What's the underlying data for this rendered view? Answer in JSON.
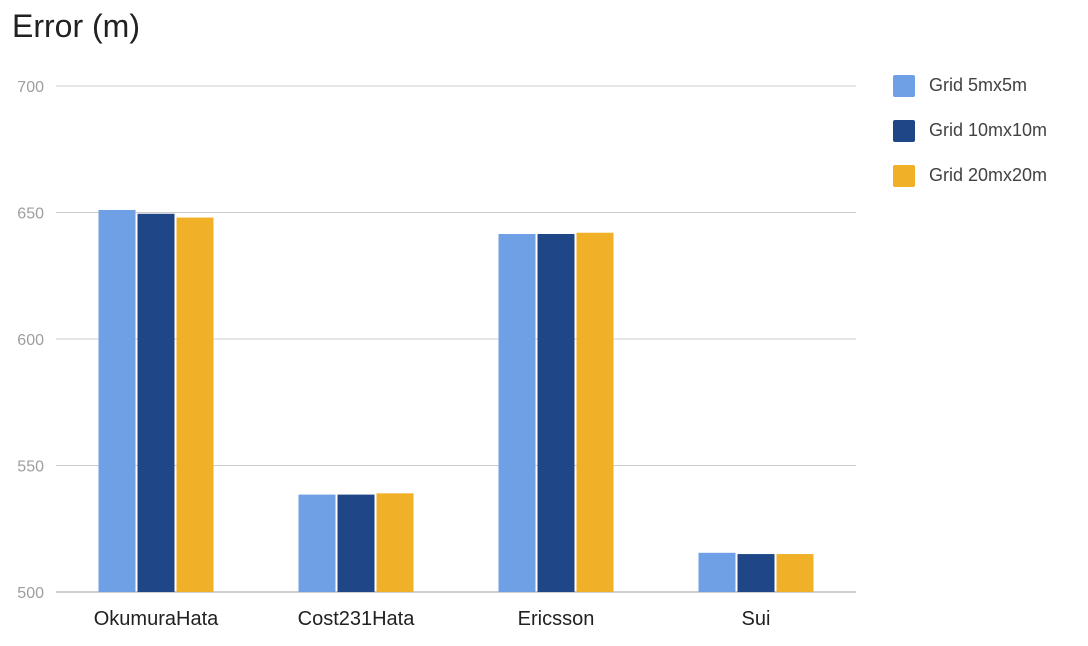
{
  "chart_data": {
    "type": "bar",
    "title": "Error (m)",
    "xlabel": "",
    "ylabel": "",
    "ylim": [
      500,
      700
    ],
    "yticks": [
      500,
      550,
      600,
      650,
      700
    ],
    "grid": true,
    "legend_position": "right",
    "categories": [
      "OkumuraHata",
      "Cost231Hata",
      "Ericsson",
      "Sui"
    ],
    "series": [
      {
        "name": "Grid 5mx5m",
        "color": "#6fa0e6",
        "values": [
          651,
          538.5,
          641.5,
          515.5
        ]
      },
      {
        "name": "Grid 10mx10m",
        "color": "#1f4788",
        "values": [
          649.5,
          538.5,
          641.5,
          515
        ]
      },
      {
        "name": "Grid 20mx20m",
        "color": "#f0b129",
        "values": [
          648,
          539,
          642,
          515
        ]
      }
    ]
  }
}
